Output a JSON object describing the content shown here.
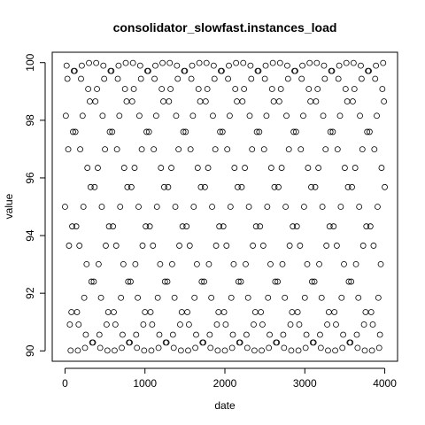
{
  "chart_data": {
    "type": "scatter",
    "title": "consolidator_slowfast.instances_load",
    "xlabel": "date",
    "ylabel": "value",
    "xlim": [
      -160,
      4160
    ],
    "ylim": [
      89.64,
      100.36
    ],
    "xticks": [
      0,
      1000,
      2000,
      3000,
      4000
    ],
    "yticks": [
      90,
      92,
      94,
      96,
      98,
      100
    ],
    "series": [
      {
        "marker": "open-circle",
        "color": "#000000",
        "x_start": 0,
        "x_end": 4000,
        "x_step": 10,
        "pattern": "value = 95 + 5*sin(2*pi*x/92)",
        "period": 92
      }
    ],
    "grid": false,
    "legend": "none"
  }
}
